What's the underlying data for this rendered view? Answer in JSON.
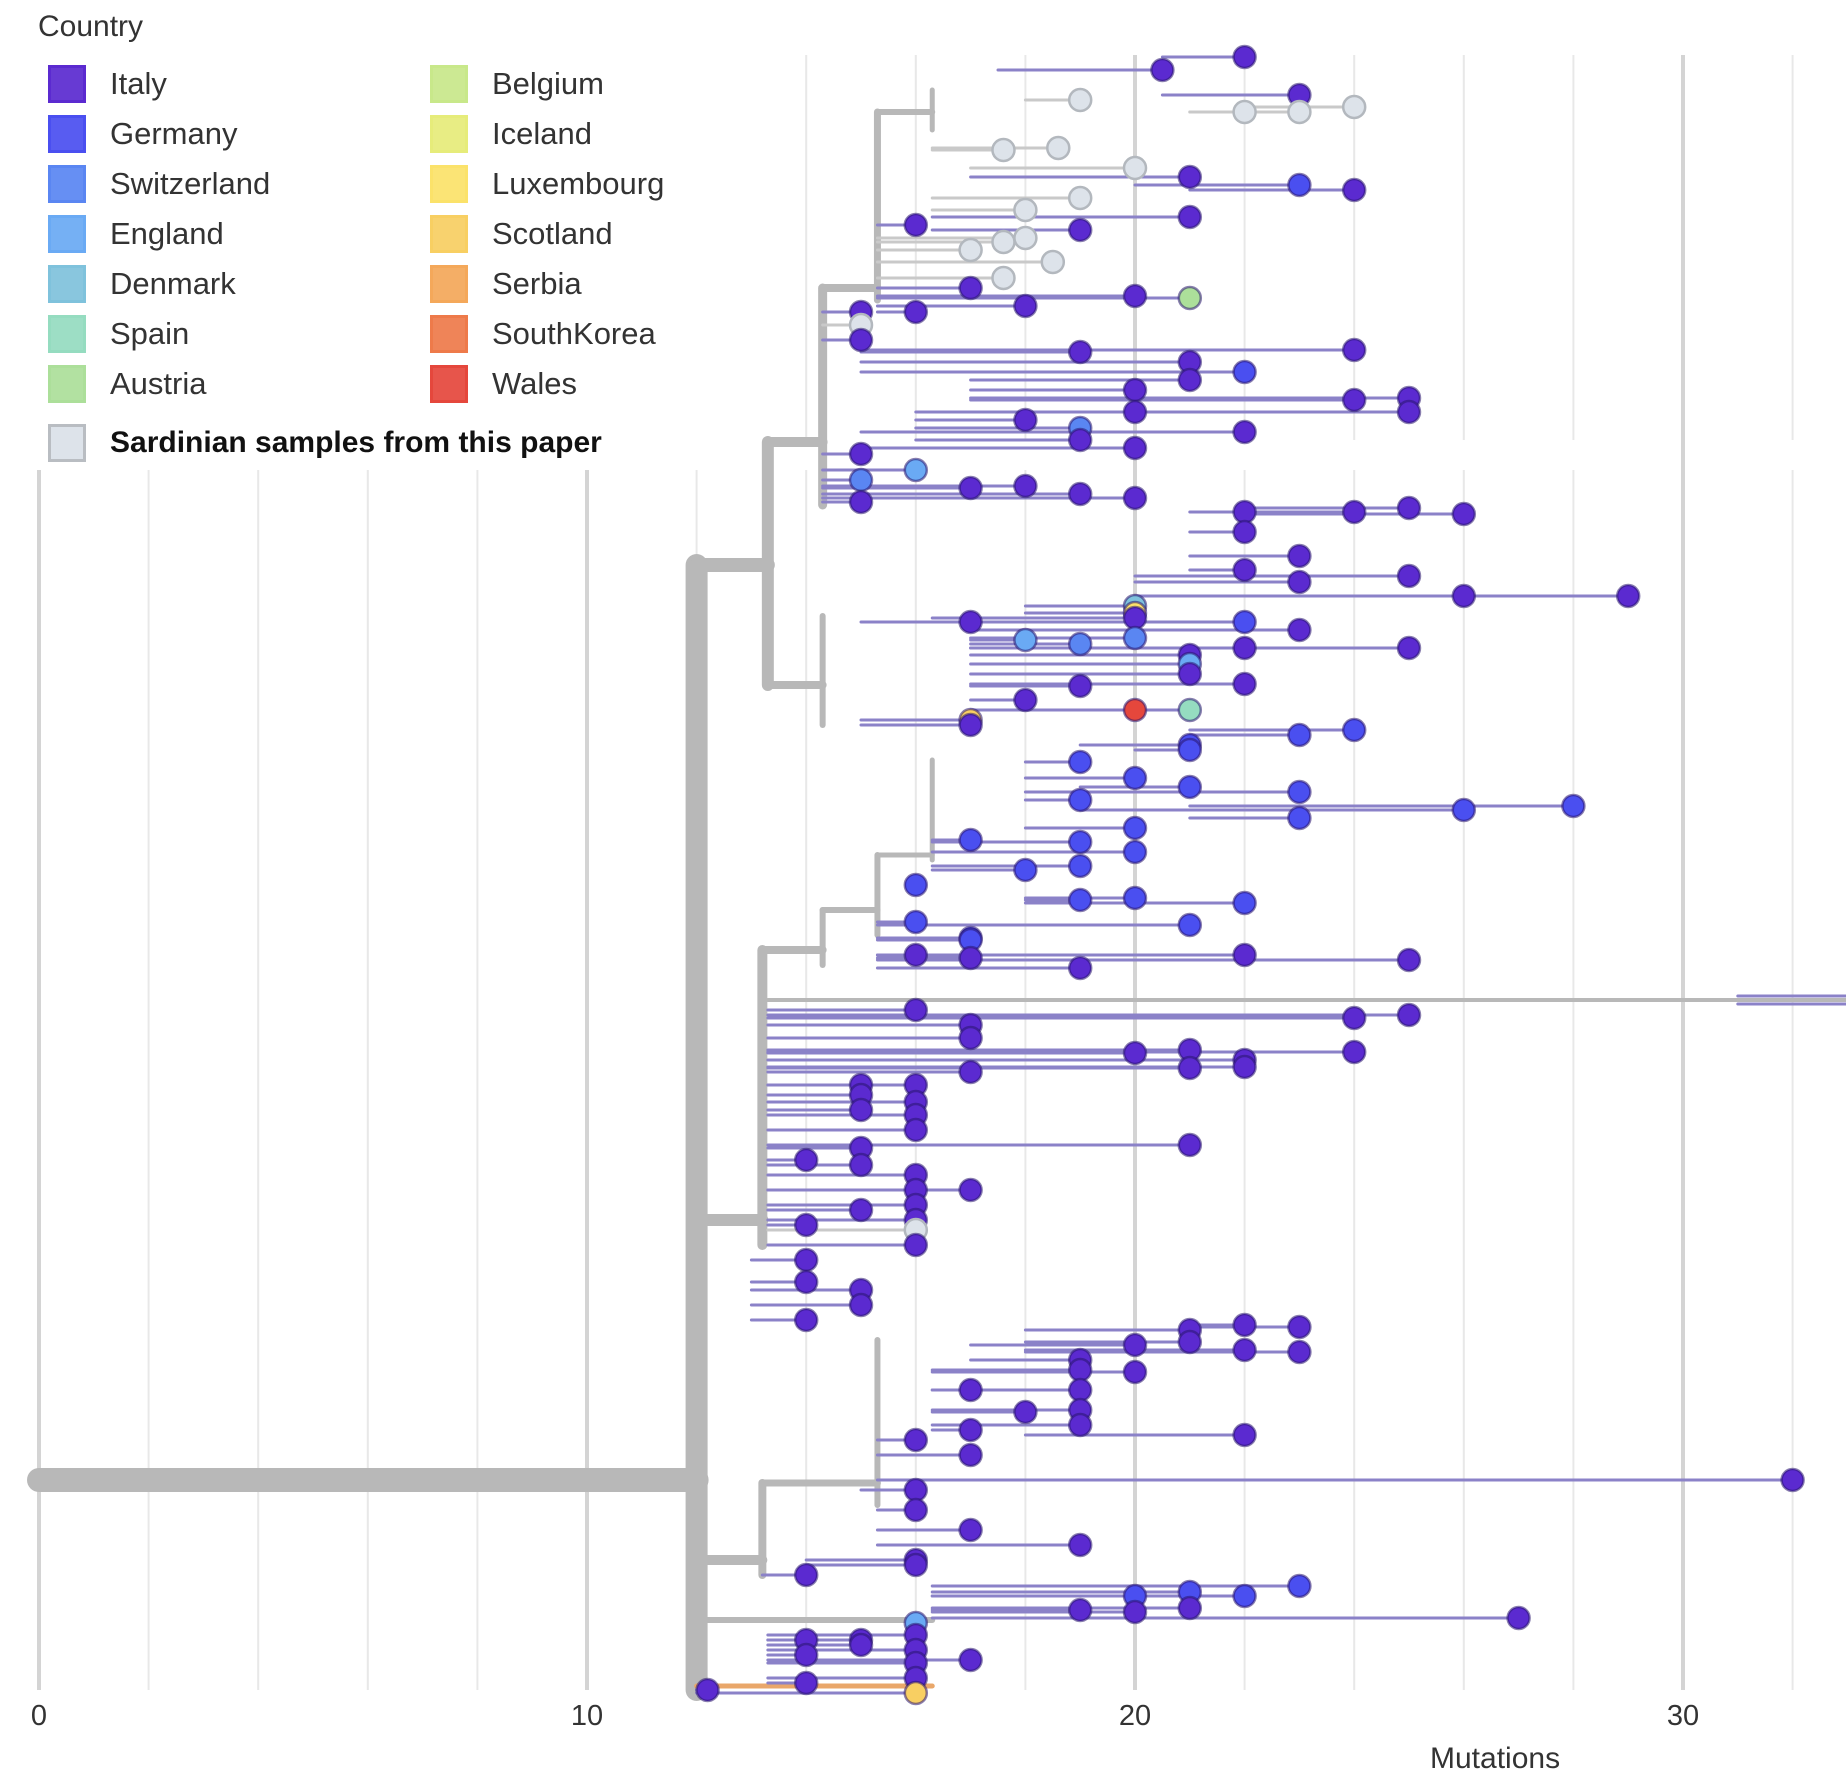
{
  "legend": {
    "title": "Country",
    "countries": [
      {
        "name": "Italy",
        "color": "#5b2ad0"
      },
      {
        "name": "Germany",
        "color": "#4a4ff0"
      },
      {
        "name": "Switzerland",
        "color": "#5a86f2"
      },
      {
        "name": "England",
        "color": "#6aaaf4"
      },
      {
        "name": "Denmark",
        "color": "#7fc2dc"
      },
      {
        "name": "Spain",
        "color": "#95dcc0"
      },
      {
        "name": "Austria",
        "color": "#acdf9a"
      },
      {
        "name": "Belgium",
        "color": "#c8e88a"
      },
      {
        "name": "Iceland",
        "color": "#e6ec7a"
      },
      {
        "name": "Luxembourg",
        "color": "#fbe26a"
      },
      {
        "name": "Scotland",
        "color": "#f8cf62"
      },
      {
        "name": "Serbia",
        "color": "#f4a85a"
      },
      {
        "name": "SouthKorea",
        "color": "#ee7a4a"
      },
      {
        "name": "Wales",
        "color": "#e5473c"
      }
    ],
    "special": {
      "name": "Sardinian samples from this paper",
      "color": "#dde3ea"
    }
  },
  "axis": {
    "label": "Mutations",
    "ticks": [
      "0",
      "10",
      "20",
      "30"
    ],
    "min": 0,
    "max": 33
  }
}
